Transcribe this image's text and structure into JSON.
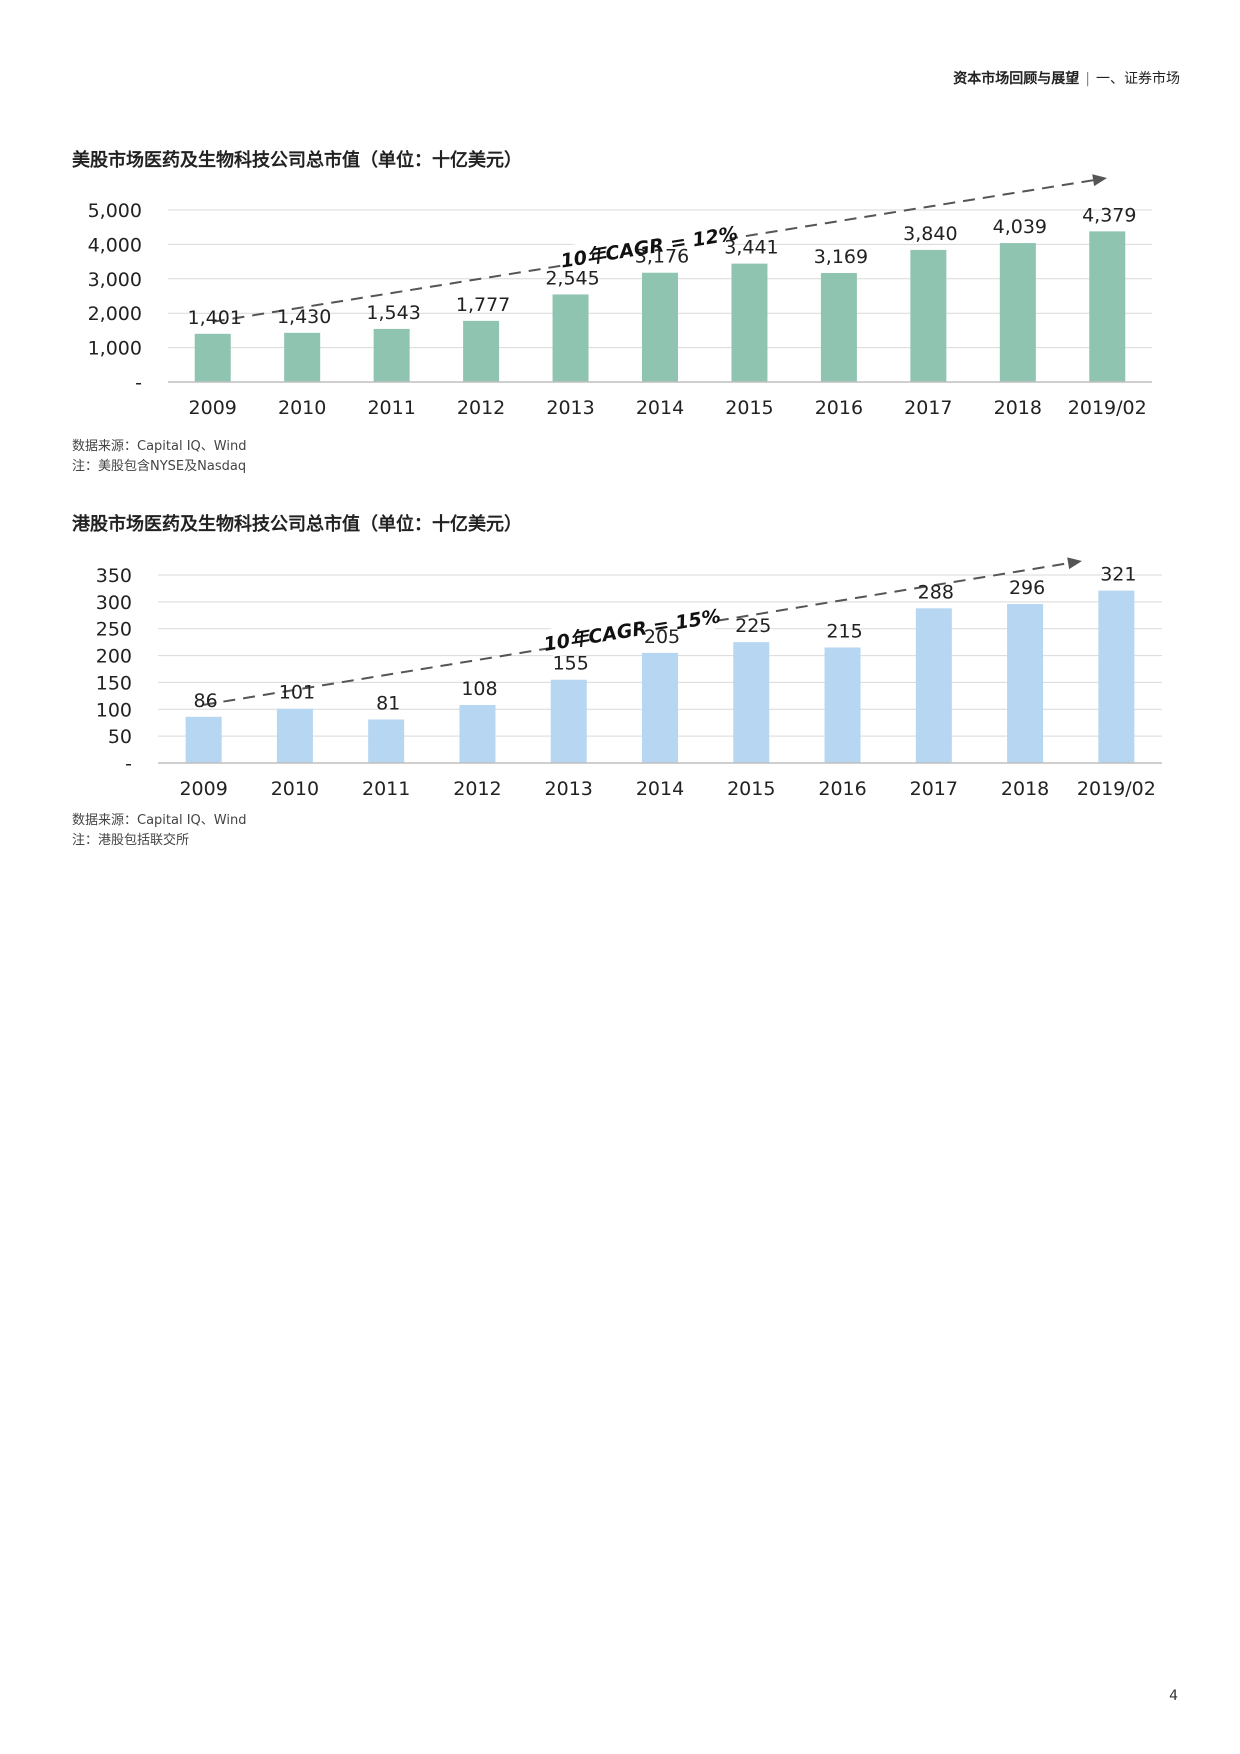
{
  "header": {
    "section_title": "资本市场回顾与展望",
    "separator": "|",
    "subsection": "一、证券市场"
  },
  "notes_us": {
    "source": "数据来源：Capital IQ、Wind",
    "note": "注：美股包含NYSE及Nasdaq"
  },
  "notes_hk": {
    "source": "数据来源：Capital IQ、Wind",
    "note": "注：港股包括联交所"
  },
  "page_number": "4",
  "colors": {
    "us_bar": "#8fc4b0",
    "hk_bar": "#b6d6f2",
    "grid": "#d9d9d9",
    "trend": "#555555"
  },
  "chart_data": [
    {
      "type": "bar",
      "title": "美股市场医药及生物科技公司总市值（单位：十亿美元）",
      "categories": [
        "2009",
        "2010",
        "2011",
        "2012",
        "2013",
        "2014",
        "2015",
        "2016",
        "2017",
        "2018",
        "2019/02"
      ],
      "values": [
        1401,
        1430,
        1543,
        1777,
        2545,
        3176,
        3441,
        3169,
        3840,
        4039,
        4379
      ],
      "value_labels": [
        "1,401",
        "1,430",
        "1,543",
        "1,777",
        "2,545",
        "3,176",
        "3,441",
        "3,169",
        "3,840",
        "4,039",
        "4,379"
      ],
      "yticks": [
        0,
        1000,
        2000,
        3000,
        4000,
        5000
      ],
      "ytick_labels": [
        "-",
        "1,000",
        "2,000",
        "3,000",
        "4,000",
        "5,000"
      ],
      "ylim": [
        0,
        5000
      ],
      "annotation": "10年CAGR = 12%",
      "xlabel": "",
      "ylabel": "",
      "grid": true
    },
    {
      "type": "bar",
      "title": "港股市场医药及生物科技公司总市值（单位：十亿美元）",
      "categories": [
        "2009",
        "2010",
        "2011",
        "2012",
        "2013",
        "2014",
        "2015",
        "2016",
        "2017",
        "2018",
        "2019/02"
      ],
      "values": [
        86,
        101,
        81,
        108,
        155,
        205,
        225,
        215,
        288,
        296,
        321
      ],
      "value_labels": [
        "86",
        "101",
        "81",
        "108",
        "155",
        "205",
        "225",
        "215",
        "288",
        "296",
        "321"
      ],
      "yticks": [
        0,
        50,
        100,
        150,
        200,
        250,
        300,
        350
      ],
      "ytick_labels": [
        "-",
        "50",
        "100",
        "150",
        "200",
        "250",
        "300",
        "350"
      ],
      "ylim": [
        0,
        350
      ],
      "annotation": "10年CAGR = 15%",
      "xlabel": "",
      "ylabel": "",
      "grid": true
    }
  ]
}
